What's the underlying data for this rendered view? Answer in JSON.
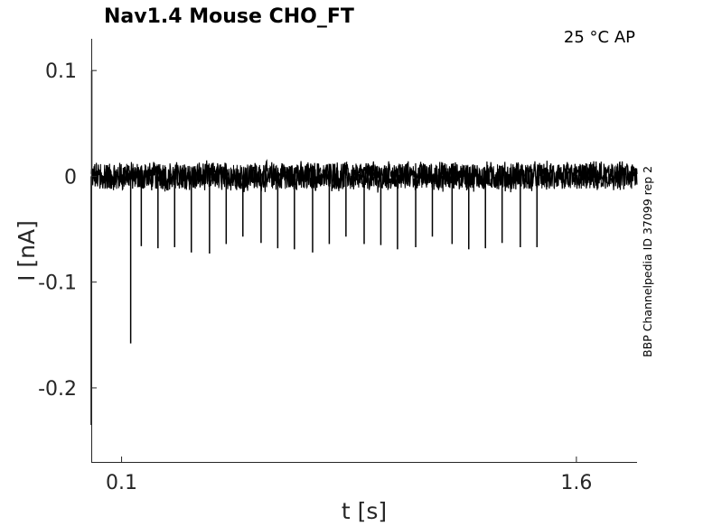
{
  "chart_data": {
    "type": "line",
    "title": "Nav1.4  Mouse  CHO_FT",
    "condition_label": "25 °C  AP",
    "side_label": "BBP Channelpedia ID 37099 rep 2",
    "xlabel": "t [s]",
    "ylabel": "I [nA]",
    "xlim": [
      0.0,
      1.8
    ],
    "ylim": [
      -0.27,
      0.13
    ],
    "xticks": [
      0.1,
      1.6
    ],
    "xtick_labels": [
      "0.1",
      "1.6"
    ],
    "yticks": [
      0.1,
      0,
      -0.1,
      -0.2
    ],
    "ytick_labels": [
      "0.1",
      "0",
      "-0.1",
      "-0.2"
    ],
    "grid": false,
    "legend": "none",
    "line_color": "#000000",
    "baseline_noise_nA": 0.012,
    "series": [
      {
        "spikes": [
          {
            "t": 0.0,
            "I": -0.235
          },
          {
            "t": 0.13,
            "I": -0.158
          },
          {
            "t": 0.165,
            "I": -0.066
          },
          {
            "t": 0.22,
            "I": -0.068
          },
          {
            "t": 0.275,
            "I": -0.067
          },
          {
            "t": 0.33,
            "I": -0.072
          },
          {
            "t": 0.39,
            "I": -0.073
          },
          {
            "t": 0.445,
            "I": -0.064
          },
          {
            "t": 0.5,
            "I": -0.057
          },
          {
            "t": 0.56,
            "I": -0.063
          },
          {
            "t": 0.615,
            "I": -0.068
          },
          {
            "t": 0.67,
            "I": -0.069
          },
          {
            "t": 0.73,
            "I": -0.072
          },
          {
            "t": 0.785,
            "I": -0.064
          },
          {
            "t": 0.84,
            "I": -0.057
          },
          {
            "t": 0.9,
            "I": -0.064
          },
          {
            "t": 0.955,
            "I": -0.065
          },
          {
            "t": 1.01,
            "I": -0.069
          },
          {
            "t": 1.07,
            "I": -0.067
          },
          {
            "t": 1.125,
            "I": -0.057
          },
          {
            "t": 1.19,
            "I": -0.064
          },
          {
            "t": 1.245,
            "I": -0.069
          },
          {
            "t": 1.3,
            "I": -0.068
          },
          {
            "t": 1.355,
            "I": -0.063
          },
          {
            "t": 1.415,
            "I": -0.067
          },
          {
            "t": 1.47,
            "I": -0.067
          }
        ]
      }
    ]
  }
}
